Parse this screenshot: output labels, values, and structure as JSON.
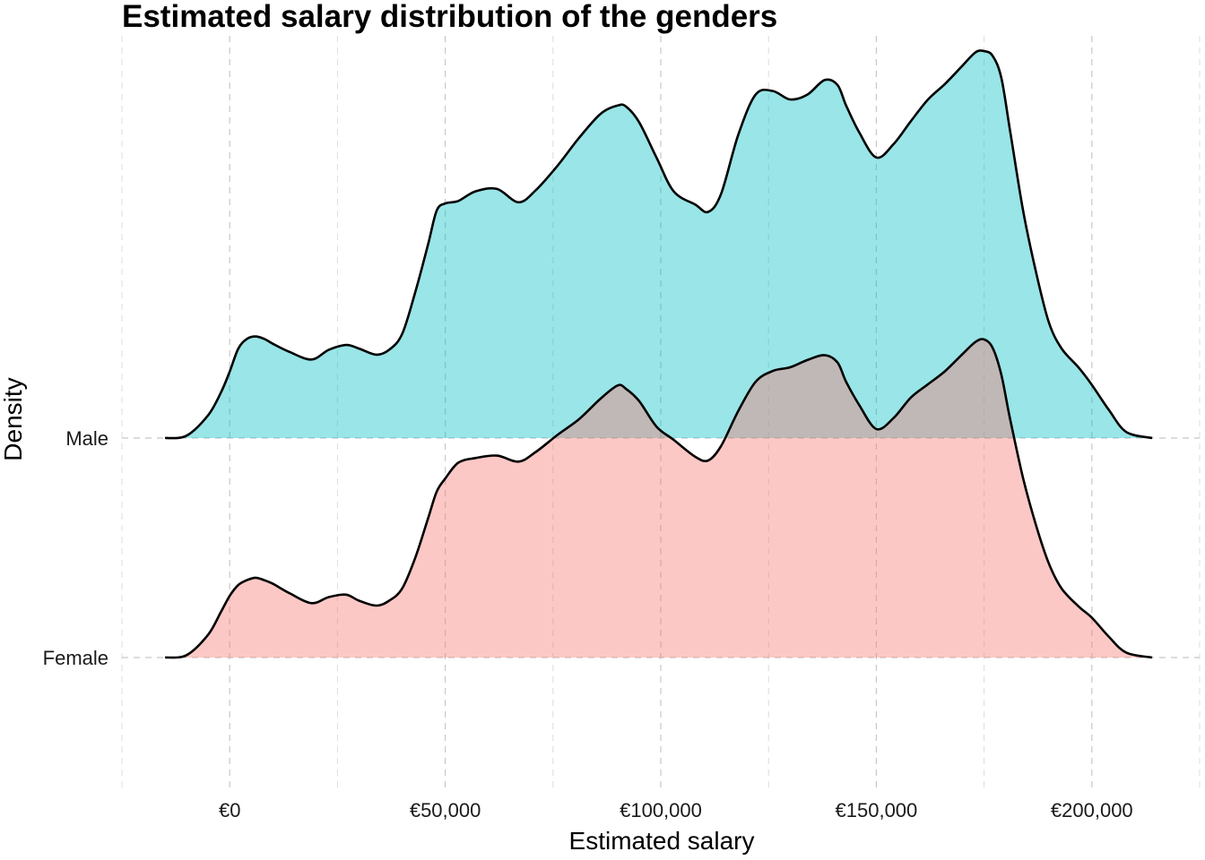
{
  "chart_data": {
    "type": "ridgeline",
    "title": "Estimated salary distribution of the genders",
    "xlabel": "Estimated salary",
    "ylabel": "Density",
    "xlim": [
      -25000,
      225000
    ],
    "x_ticks": [
      {
        "value": 0,
        "label": "€0"
      },
      {
        "value": 50000,
        "label": "€50,000"
      },
      {
        "value": 100000,
        "label": "€100,000"
      },
      {
        "value": 150000,
        "label": "€150,000"
      },
      {
        "value": 200000,
        "label": "€200,000"
      }
    ],
    "x_minor_ticks": [
      -25000,
      25000,
      75000,
      125000,
      175000,
      225000
    ],
    "categories": [
      "Female",
      "Male"
    ],
    "grid": "dashed",
    "fill_colors": {
      "Female": "#F8766D",
      "Male": "#00BFC4"
    },
    "fill_opacity": 0.4,
    "series": [
      {
        "name": "Female",
        "x": [
          -15000,
          -10000,
          -5000,
          -2000,
          0,
          2000,
          4000,
          6000,
          8000,
          10000,
          14000,
          19000,
          23000,
          27000,
          30000,
          34000,
          37000,
          40000,
          43000,
          46000,
          48000,
          50000,
          53000,
          57000,
          62000,
          67000,
          71000,
          76000,
          81000,
          86000,
          90000,
          92000,
          95000,
          99000,
          103000,
          108000,
          111000,
          114000,
          118000,
          122000,
          126000,
          130000,
          134000,
          138000,
          141000,
          143000,
          146000,
          150000,
          154000,
          158000,
          162000,
          166000,
          170000,
          173000,
          175000,
          177000,
          179000,
          181000,
          184000,
          187000,
          190000,
          193000,
          197000,
          200000,
          204000,
          208000,
          214000
        ],
        "density": [
          0.0,
          0.02,
          0.19,
          0.38,
          0.51,
          0.6,
          0.64,
          0.66,
          0.64,
          0.61,
          0.53,
          0.45,
          0.5,
          0.52,
          0.47,
          0.43,
          0.47,
          0.57,
          0.82,
          1.15,
          1.37,
          1.48,
          1.61,
          1.65,
          1.67,
          1.62,
          1.7,
          1.84,
          1.97,
          2.14,
          2.25,
          2.22,
          2.12,
          1.91,
          1.8,
          1.66,
          1.63,
          1.75,
          2.04,
          2.28,
          2.37,
          2.4,
          2.46,
          2.5,
          2.44,
          2.28,
          2.09,
          1.89,
          1.98,
          2.15,
          2.26,
          2.37,
          2.51,
          2.61,
          2.63,
          2.56,
          2.34,
          1.98,
          1.49,
          1.1,
          0.78,
          0.57,
          0.42,
          0.33,
          0.17,
          0.04,
          0.0
        ]
      },
      {
        "name": "Male",
        "x": [
          -15000,
          -10000,
          -5000,
          -2000,
          0,
          2000,
          4000,
          6000,
          8000,
          10000,
          14000,
          19000,
          23000,
          27000,
          30000,
          34000,
          37000,
          40000,
          43000,
          46000,
          48000,
          50000,
          53000,
          57000,
          62000,
          67000,
          71000,
          76000,
          81000,
          86000,
          90000,
          92000,
          95000,
          99000,
          103000,
          108000,
          111000,
          114000,
          118000,
          122000,
          126000,
          130000,
          134000,
          138000,
          141000,
          143000,
          146000,
          150000,
          154000,
          158000,
          162000,
          166000,
          170000,
          173000,
          175000,
          177000,
          179000,
          181000,
          184000,
          187000,
          190000,
          193000,
          197000,
          200000,
          204000,
          208000,
          214000
        ],
        "density": [
          0.0,
          0.02,
          0.19,
          0.38,
          0.55,
          0.74,
          0.82,
          0.84,
          0.82,
          0.78,
          0.71,
          0.65,
          0.73,
          0.77,
          0.74,
          0.69,
          0.73,
          0.86,
          1.2,
          1.6,
          1.88,
          1.94,
          1.96,
          2.04,
          2.06,
          1.95,
          2.05,
          2.25,
          2.48,
          2.68,
          2.75,
          2.74,
          2.61,
          2.32,
          2.04,
          1.93,
          1.87,
          2.02,
          2.51,
          2.84,
          2.87,
          2.8,
          2.84,
          2.96,
          2.92,
          2.75,
          2.53,
          2.32,
          2.43,
          2.62,
          2.8,
          2.93,
          3.08,
          3.19,
          3.2,
          3.16,
          2.98,
          2.55,
          1.89,
          1.38,
          0.96,
          0.74,
          0.58,
          0.44,
          0.23,
          0.05,
          0.0
        ]
      }
    ]
  }
}
